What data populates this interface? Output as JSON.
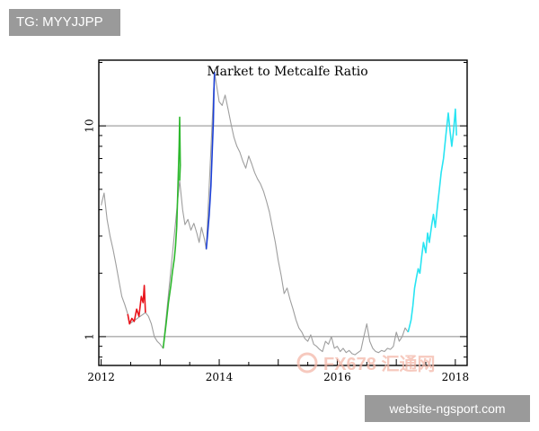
{
  "overlays": {
    "tag_text": "TG: MYYJJPP",
    "site_text": "website-ngsport.com",
    "watermark_text": "FX678 汇通网"
  },
  "colors": {
    "gray_line": "#9e9e9e",
    "red": "#e8141b",
    "green": "#2db82d",
    "blue": "#1b3fd6",
    "cyan": "#28e4f2",
    "axis": "#000000",
    "grid": "#8a8a8a"
  },
  "chart_data": {
    "type": "line",
    "title": "Market to Metcalfe Ratio",
    "xlabel": "",
    "ylabel": "",
    "y_scale": "log",
    "xlim": [
      2011.96,
      2018.2
    ],
    "ylim": [
      0.73,
      20.5
    ],
    "x_ticks": [
      2012,
      2014,
      2016,
      2018
    ],
    "x_tick_labels": [
      "2012",
      "2014",
      "2016",
      "2018"
    ],
    "y_ticks": [
      1,
      10
    ],
    "y_tick_labels": [
      "1",
      "10"
    ],
    "gridlines_y": [
      1,
      10
    ],
    "legend": "none",
    "series": [
      {
        "color": "gray",
        "points": [
          [
            2012.0,
            4.2
          ],
          [
            2012.05,
            4.8
          ],
          [
            2012.1,
            3.6
          ],
          [
            2012.15,
            3.0
          ],
          [
            2012.2,
            2.6
          ],
          [
            2012.25,
            2.2
          ],
          [
            2012.3,
            1.85
          ],
          [
            2012.35,
            1.55
          ],
          [
            2012.4,
            1.42
          ],
          [
            2012.45,
            1.28
          ],
          [
            2012.48,
            1.15
          ],
          [
            2012.75,
            1.3
          ],
          [
            2012.8,
            1.25
          ],
          [
            2012.85,
            1.15
          ],
          [
            2012.9,
            1.0
          ],
          [
            2012.95,
            0.95
          ],
          [
            2013.0,
            0.92
          ],
          [
            2013.05,
            0.88
          ],
          [
            2013.33,
            5.5
          ],
          [
            2013.38,
            4.0
          ],
          [
            2013.42,
            3.4
          ],
          [
            2013.47,
            3.6
          ],
          [
            2013.52,
            3.2
          ],
          [
            2013.57,
            3.45
          ],
          [
            2013.62,
            3.1
          ],
          [
            2013.66,
            2.8
          ],
          [
            2013.7,
            3.3
          ],
          [
            2013.75,
            2.9
          ],
          [
            2013.78,
            2.6
          ],
          [
            2013.92,
            18
          ],
          [
            2014.0,
            13
          ],
          [
            2014.05,
            12.5
          ],
          [
            2014.1,
            14
          ],
          [
            2014.15,
            12
          ],
          [
            2014.2,
            10.2
          ],
          [
            2014.25,
            8.8
          ],
          [
            2014.3,
            8.0
          ],
          [
            2014.35,
            7.5
          ],
          [
            2014.4,
            6.8
          ],
          [
            2014.45,
            6.3
          ],
          [
            2014.5,
            7.2
          ],
          [
            2014.55,
            6.6
          ],
          [
            2014.6,
            6.0
          ],
          [
            2014.65,
            5.6
          ],
          [
            2014.7,
            5.3
          ],
          [
            2014.75,
            4.9
          ],
          [
            2014.8,
            4.4
          ],
          [
            2014.85,
            3.9
          ],
          [
            2014.9,
            3.3
          ],
          [
            2014.95,
            2.8
          ],
          [
            2015.0,
            2.3
          ],
          [
            2015.05,
            1.95
          ],
          [
            2015.1,
            1.6
          ],
          [
            2015.15,
            1.7
          ],
          [
            2015.2,
            1.5
          ],
          [
            2015.25,
            1.35
          ],
          [
            2015.3,
            1.2
          ],
          [
            2015.35,
            1.1
          ],
          [
            2015.4,
            1.05
          ],
          [
            2015.45,
            0.98
          ],
          [
            2015.5,
            0.95
          ],
          [
            2015.55,
            1.02
          ],
          [
            2015.6,
            0.92
          ],
          [
            2015.65,
            0.9
          ],
          [
            2015.7,
            0.87
          ],
          [
            2015.75,
            0.85
          ],
          [
            2015.8,
            0.95
          ],
          [
            2015.85,
            0.92
          ],
          [
            2015.9,
            1.0
          ],
          [
            2015.95,
            0.88
          ],
          [
            2016.0,
            0.9
          ],
          [
            2016.05,
            0.85
          ],
          [
            2016.1,
            0.88
          ],
          [
            2016.15,
            0.84
          ],
          [
            2016.2,
            0.86
          ],
          [
            2016.25,
            0.83
          ],
          [
            2016.3,
            0.82
          ],
          [
            2016.35,
            0.84
          ],
          [
            2016.4,
            0.86
          ],
          [
            2016.45,
            1.0
          ],
          [
            2016.5,
            1.15
          ],
          [
            2016.55,
            0.95
          ],
          [
            2016.6,
            0.88
          ],
          [
            2016.65,
            0.85
          ],
          [
            2016.7,
            0.84
          ],
          [
            2016.75,
            0.86
          ],
          [
            2016.8,
            0.85
          ],
          [
            2016.85,
            0.88
          ],
          [
            2016.9,
            0.87
          ],
          [
            2016.95,
            0.9
          ],
          [
            2017.0,
            1.05
          ],
          [
            2017.05,
            0.95
          ],
          [
            2017.1,
            1.0
          ],
          [
            2017.15,
            1.1
          ],
          [
            2017.2,
            1.05
          ]
        ]
      },
      {
        "color": "red",
        "points": [
          [
            2012.45,
            1.28
          ],
          [
            2012.48,
            1.15
          ],
          [
            2012.52,
            1.22
          ],
          [
            2012.56,
            1.18
          ],
          [
            2012.6,
            1.35
          ],
          [
            2012.64,
            1.25
          ],
          [
            2012.68,
            1.55
          ],
          [
            2012.71,
            1.45
          ],
          [
            2012.73,
            1.75
          ],
          [
            2012.75,
            1.3
          ]
        ]
      },
      {
        "color": "green",
        "points": [
          [
            2013.05,
            0.88
          ],
          [
            2013.1,
            1.15
          ],
          [
            2013.14,
            1.45
          ],
          [
            2013.18,
            1.75
          ],
          [
            2013.21,
            2.05
          ],
          [
            2013.24,
            2.35
          ],
          [
            2013.26,
            2.7
          ],
          [
            2013.28,
            3.3
          ],
          [
            2013.3,
            5.0
          ],
          [
            2013.32,
            8.0
          ],
          [
            2013.33,
            11.0
          ],
          [
            2013.34,
            6.5
          ],
          [
            2013.33,
            5.5
          ]
        ]
      },
      {
        "color": "blue",
        "points": [
          [
            2013.78,
            2.6
          ],
          [
            2013.8,
            3.0
          ],
          [
            2013.83,
            3.8
          ],
          [
            2013.86,
            5.2
          ],
          [
            2013.88,
            7.5
          ],
          [
            2013.9,
            10.5
          ],
          [
            2013.91,
            14.5
          ],
          [
            2013.92,
            18
          ]
        ]
      },
      {
        "color": "cyan",
        "points": [
          [
            2017.2,
            1.05
          ],
          [
            2017.25,
            1.2
          ],
          [
            2017.28,
            1.4
          ],
          [
            2017.31,
            1.7
          ],
          [
            2017.34,
            1.9
          ],
          [
            2017.37,
            2.1
          ],
          [
            2017.4,
            2.0
          ],
          [
            2017.43,
            2.4
          ],
          [
            2017.46,
            2.8
          ],
          [
            2017.5,
            2.5
          ],
          [
            2017.53,
            3.1
          ],
          [
            2017.56,
            2.8
          ],
          [
            2017.6,
            3.4
          ],
          [
            2017.63,
            3.8
          ],
          [
            2017.66,
            3.3
          ],
          [
            2017.7,
            4.2
          ],
          [
            2017.73,
            5.0
          ],
          [
            2017.76,
            6.0
          ],
          [
            2017.8,
            7.0
          ],
          [
            2017.84,
            9.0
          ],
          [
            2017.88,
            11.5
          ],
          [
            2017.91,
            9.5
          ],
          [
            2017.94,
            8.0
          ],
          [
            2017.97,
            9.5
          ],
          [
            2018.0,
            12.0
          ],
          [
            2018.02,
            9.0
          ]
        ]
      }
    ]
  }
}
